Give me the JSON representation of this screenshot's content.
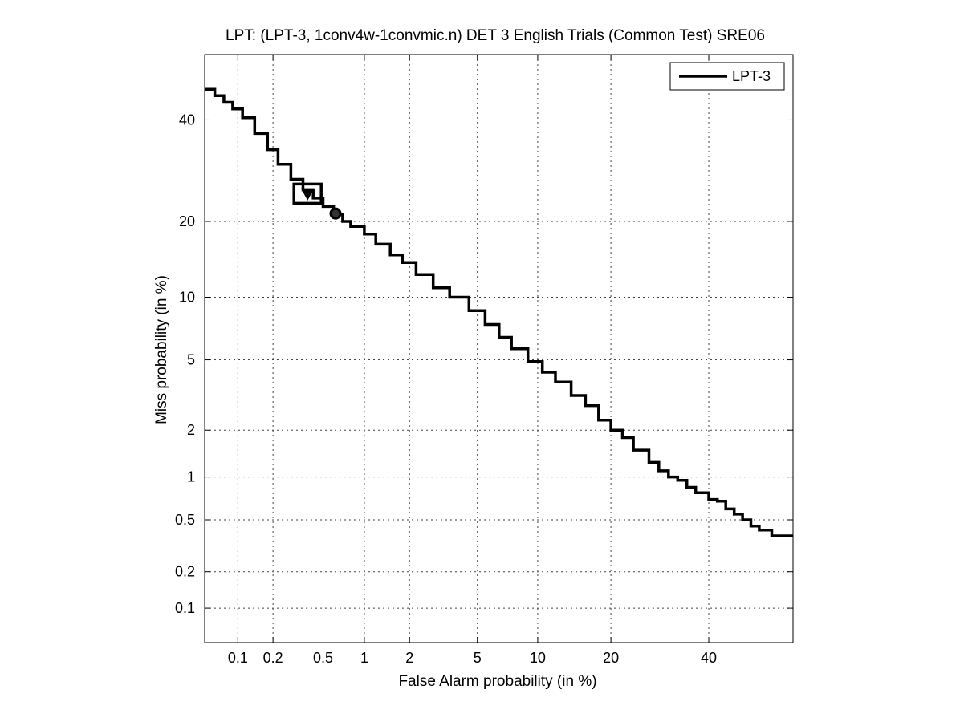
{
  "chart_data": {
    "type": "line",
    "title": "LPT: (LPT-3, 1conv4w-1convmic.n) DET 3 English Trials (Common Test) SRE06",
    "xlabel": "False Alarm probability (in %)",
    "ylabel": "Miss probability (in %)",
    "x_scale": "probit",
    "y_scale": "probit",
    "xlim": [
      0.05,
      60
    ],
    "ylim": [
      0.05,
      55
    ],
    "x_ticks": [
      0.1,
      0.2,
      0.5,
      1,
      2,
      5,
      10,
      20,
      40
    ],
    "x_tick_labels": [
      "0.1",
      "0.2",
      "0.5",
      "1",
      "2",
      "5",
      "10",
      "20",
      "40"
    ],
    "y_ticks": [
      0.1,
      0.2,
      0.5,
      1,
      2,
      5,
      10,
      20,
      40
    ],
    "y_tick_labels": [
      "0.1",
      "0.2",
      "0.5",
      "1",
      "2",
      "5",
      "10",
      "20",
      "40"
    ],
    "grid": true,
    "legend_position": "top-right",
    "series": [
      {
        "name": "LPT-3",
        "color": "#000000",
        "x": [
          0.05,
          0.062,
          0.075,
          0.09,
          0.11,
          0.14,
          0.18,
          0.22,
          0.28,
          0.35,
          0.42,
          0.5,
          0.6,
          0.7,
          0.8,
          1.0,
          1.2,
          1.5,
          1.8,
          2.2,
          2.8,
          3.5,
          4.5,
          5.5,
          6.5,
          7.5,
          9.0,
          10.5,
          12.0,
          14.0,
          16.0,
          18.0,
          20.0,
          22.0,
          24.0,
          27.0,
          29.0,
          31.0,
          33.0,
          35.0,
          37.0,
          40.0,
          42.0,
          44.0,
          46.0,
          48.0,
          50.0,
          52.0,
          55.0,
          60.0
        ],
        "y": [
          47.0,
          45.5,
          44.0,
          42.5,
          40.5,
          37.0,
          33.5,
          30.5,
          27.5,
          25.5,
          24.0,
          22.5,
          21.2,
          20.0,
          19.2,
          18.0,
          16.5,
          15.0,
          14.0,
          12.5,
          11.0,
          10.0,
          8.7,
          7.5,
          6.5,
          5.7,
          4.9,
          4.3,
          3.8,
          3.2,
          2.8,
          2.3,
          2.0,
          1.8,
          1.5,
          1.25,
          1.1,
          1.0,
          0.95,
          0.85,
          0.78,
          0.7,
          0.68,
          0.6,
          0.55,
          0.5,
          0.45,
          0.42,
          0.38,
          0.38
        ]
      }
    ],
    "markers": [
      {
        "name": "actual-decision-point",
        "shape": "triangle-down",
        "x": 0.38,
        "y": 24.8
      },
      {
        "name": "min-cost-point",
        "shape": "circle",
        "x": 0.62,
        "y": 21.3
      }
    ],
    "marker_box": {
      "x": 0.38,
      "y": 24.8
    }
  }
}
